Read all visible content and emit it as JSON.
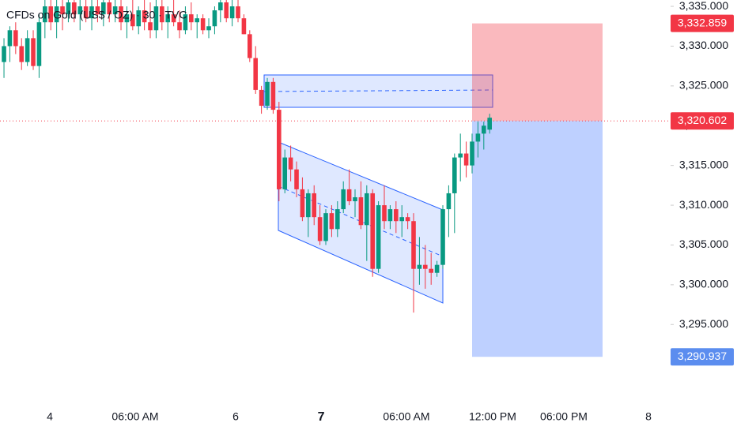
{
  "chart_data": {
    "type": "candlestick",
    "title": "CFDs on Gold (US$ / OZ) · 30 · TVC",
    "up_color": "#089981",
    "down_color": "#f23645",
    "xlim": [
      -0.68,
      113.92
    ],
    "xticks": [
      {
        "value": 7.84,
        "label": "4"
      },
      {
        "value": 22.43,
        "label": "06:00 AM"
      },
      {
        "value": 39.59,
        "label": "6"
      },
      {
        "value": 54.19,
        "label": "7"
      },
      {
        "value": 68.78,
        "label": "06:00 AM"
      },
      {
        "value": 83.51,
        "label": "12:00 PM"
      },
      {
        "value": 95.68,
        "label": "06:00 PM"
      },
      {
        "value": 110.14,
        "label": "8"
      }
    ],
    "ylim": [
      3285.7,
      3335.8
    ],
    "yticks": [
      {
        "value": 3335,
        "label": "3,335.000"
      },
      {
        "value": 3330,
        "label": "3,330.000"
      },
      {
        "value": 3325,
        "label": "3,325.000"
      },
      {
        "value": 3320,
        "label": "3,320.000"
      },
      {
        "value": 3315,
        "label": "3,315.000"
      },
      {
        "value": 3310,
        "label": "3,310.000"
      },
      {
        "value": 3305,
        "label": "3,305.000"
      },
      {
        "value": 3300,
        "label": "3,300.000"
      },
      {
        "value": 3295,
        "label": "3,295.000"
      }
    ],
    "x": [
      0,
      1,
      2,
      3,
      4,
      5,
      6,
      7,
      8,
      9,
      10,
      11,
      12,
      13,
      14,
      15,
      16,
      17,
      18,
      19,
      20,
      21,
      22,
      23,
      24,
      25,
      26,
      27,
      28,
      29,
      30,
      31,
      32,
      33,
      34,
      35,
      36,
      37,
      38,
      39,
      40,
      41,
      42,
      43,
      44,
      45,
      46,
      47,
      48,
      49,
      50,
      51,
      52,
      53,
      54,
      55,
      56,
      57,
      58,
      59,
      60,
      61,
      62,
      63,
      64,
      65,
      66,
      67,
      68,
      69,
      70,
      71,
      72,
      73,
      74,
      75,
      76,
      77,
      78,
      79,
      80,
      81,
      82,
      83
    ],
    "open": [
      3328,
      3330,
      3332,
      3330,
      3328,
      3331,
      3327.5,
      3333,
      3335,
      3333,
      3335,
      3334,
      3335.5,
      3334,
      3335,
      3333.5,
      3335,
      3334,
      3335.5,
      3334,
      3335,
      3333,
      3334,
      3332.5,
      3334.5,
      3333,
      3332,
      3335,
      3333,
      3334,
      3333,
      3332,
      3334,
      3333,
      3333.5,
      3332,
      3332.5,
      3334.5,
      3335.5,
      3333.5,
      3335,
      3333.5,
      3331.5,
      3328.5,
      3324.5,
      3322.5,
      3325.5,
      3322,
      3312,
      3316,
      3314.5,
      3312,
      3308.5,
      3311.5,
      3308.5,
      3305.5,
      3309,
      3307,
      3309.5,
      3312,
      3310.5,
      3311,
      3307.5,
      3311.5,
      3302,
      3310,
      3308,
      3309.5,
      3308,
      3308.5,
      3308,
      3302,
      3302.5,
      3302,
      3301.5,
      3302.5,
      3309.5,
      3311.5,
      3316,
      3316.5,
      3315,
      3318,
      3319,
      3319.5
    ],
    "high": [
      3331,
      3332.5,
      3333,
      3331,
      3332,
      3332,
      3334,
      3336,
      3336,
      3336,
      3336,
      3336,
      3336,
      3336,
      3336,
      3336,
      3336,
      3336,
      3336,
      3336,
      3336,
      3335,
      3336,
      3335,
      3336,
      3335.5,
      3336,
      3336,
      3335,
      3336,
      3334.5,
      3335,
      3335.5,
      3334,
      3334,
      3333.5,
      3335,
      3336,
      3336,
      3336,
      3336,
      3334,
      3332,
      3330,
      3325,
      3326,
      3326,
      3323,
      3317,
      3317.5,
      3315.5,
      3313.5,
      3312,
      3312.5,
      3310,
      3309.5,
      3310,
      3310.5,
      3313,
      3314.5,
      3312,
      3313,
      3312.5,
      3312,
      3310.5,
      3312.5,
      3310,
      3310.5,
      3310,
      3309,
      3309,
      3306,
      3305,
      3304,
      3303,
      3310,
      3312.5,
      3316.5,
      3319,
      3318,
      3319,
      3320.5,
      3320.5,
      3321.5
    ],
    "low": [
      3326,
      3328,
      3329,
      3327,
      3327.5,
      3327,
      3326,
      3331,
      3332,
      3331,
      3332,
      3333,
      3333,
      3332,
      3333,
      3332,
      3333,
      3332.5,
      3333,
      3333,
      3332,
      3331,
      3332,
      3331.5,
      3332,
      3331,
      3331,
      3332,
      3331,
      3332.5,
      3331,
      3331.5,
      3332,
      3331,
      3331.5,
      3331,
      3331.5,
      3333,
      3333,
      3332.5,
      3333,
      3331.5,
      3328,
      3324,
      3321.5,
      3322,
      3321.5,
      3310.5,
      3311.5,
      3313,
      3311,
      3308,
      3306,
      3307.5,
      3305,
      3305,
      3306,
      3306,
      3309,
      3310,
      3308.5,
      3307,
      3303,
      3301,
      3301.5,
      3307,
      3307,
      3306.5,
      3306,
      3307,
      3296.5,
      3300,
      3299.5,
      3300,
      3301,
      3302,
      3306,
      3306.5,
      3313,
      3313.5,
      3314,
      3316,
      3317,
      3319
    ],
    "close": [
      3330,
      3332,
      3330,
      3328,
      3331,
      3327.5,
      3333,
      3335,
      3333,
      3335,
      3334,
      3335.5,
      3334,
      3335,
      3333.5,
      3335,
      3334,
      3335.5,
      3334,
      3335,
      3333,
      3334,
      3332.5,
      3334.5,
      3333,
      3332,
      3335,
      3333,
      3334,
      3333,
      3332,
      3334,
      3333,
      3333.5,
      3332,
      3332.5,
      3334.5,
      3335.5,
      3333.5,
      3335,
      3333.5,
      3331.5,
      3328.5,
      3324.5,
      3322.5,
      3325.5,
      3322,
      3312,
      3316,
      3314.5,
      3312,
      3308.5,
      3311.5,
      3308.5,
      3305.5,
      3309,
      3307,
      3309.5,
      3312,
      3310.5,
      3311,
      3307.5,
      3311.5,
      3302,
      3310,
      3308,
      3309.5,
      3308,
      3308.5,
      3308,
      3302,
      3302.5,
      3302,
      3301.5,
      3302.5,
      3309.5,
      3311.5,
      3316,
      3316.5,
      3315,
      3318,
      3319,
      3320,
      3321
    ],
    "position": {
      "target": {
        "value": 3332.859,
        "label": "3,332.859"
      },
      "entry": {
        "value": 3320.602,
        "label": "3,320.602"
      },
      "stop": {
        "value": 3290.937,
        "label": "3,290.937"
      }
    }
  }
}
